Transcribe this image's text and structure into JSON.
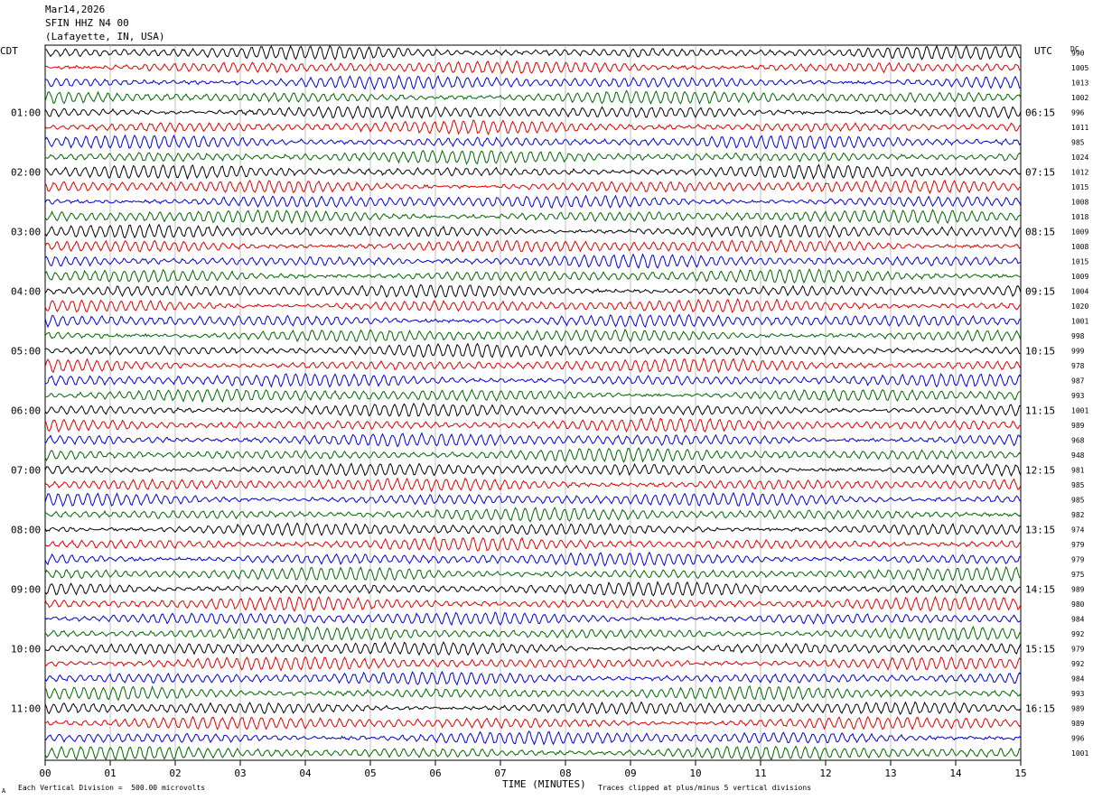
{
  "header": {
    "date": "Mar14,2026",
    "station": "SFIN HHZ N4 00",
    "location": "(Lafayette, IN, USA)"
  },
  "left_timezone": "CDT",
  "right_timezone": "UTC",
  "dc_label": "DC",
  "footer": {
    "scale_marker": "A",
    "scale_note": "Each Vertical Division =  500.00 microvolts",
    "clip_note": "Traces clipped at plus/minus 5 vertical divisions"
  },
  "colors": {
    "trace_cycle": [
      "#000000",
      "#dd0000",
      "#0000cc",
      "#006600"
    ],
    "grid": "#999999"
  },
  "chart_data": {
    "type": "line",
    "xlabel": "TIME (MINUTES)",
    "xlim": [
      0,
      15
    ],
    "x_ticks": [
      "00",
      "01",
      "02",
      "03",
      "04",
      "05",
      "06",
      "07",
      "08",
      "09",
      "10",
      "11",
      "12",
      "13",
      "14",
      "15"
    ],
    "grid": true,
    "left_hour_labels": [
      "01:00",
      "02:00",
      "03:00",
      "04:00",
      "05:00",
      "06:00",
      "07:00",
      "08:00",
      "09:00",
      "10:00",
      "11:00"
    ],
    "right_hour_labels": [
      "06:15",
      "07:15",
      "08:15",
      "09:15",
      "10:15",
      "11:15",
      "12:15",
      "13:15",
      "14:15",
      "15:15",
      "16:15"
    ],
    "dc_offsets": [
      990,
      1005,
      1013,
      1002,
      996,
      1011,
      985,
      1024,
      1012,
      1015,
      1008,
      1018,
      1009,
      1008,
      1015,
      1009,
      1004,
      1020,
      1001,
      998,
      999,
      978,
      987,
      993,
      1001,
      989,
      968,
      948,
      981,
      985,
      985,
      982,
      974,
      979,
      979,
      975,
      989,
      980,
      984,
      992,
      979,
      992,
      984,
      993,
      989,
      989,
      996,
      1001
    ]
  }
}
